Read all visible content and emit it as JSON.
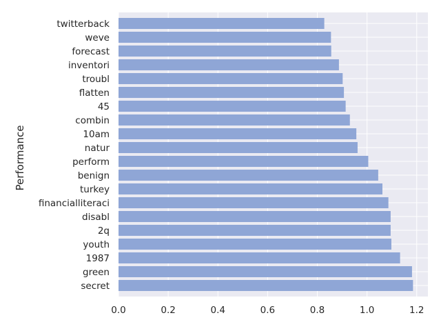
{
  "chart_data": {
    "type": "bar",
    "orientation": "horizontal",
    "categories": [
      "secret",
      "green",
      "1987",
      "youth",
      "2q",
      "disabl",
      "financialliteraci",
      "turkey",
      "benign",
      "perform",
      "natur",
      "10am",
      "combin",
      "45",
      "flatten",
      "troubl",
      "inventori",
      "forecast",
      "weve",
      "twitterback"
    ],
    "values": [
      1.185,
      1.181,
      1.133,
      1.098,
      1.095,
      1.095,
      1.086,
      1.062,
      1.045,
      1.005,
      0.962,
      0.957,
      0.931,
      0.914,
      0.907,
      0.902,
      0.887,
      0.856,
      0.855,
      0.828
    ],
    "title": "",
    "xlabel": "",
    "ylabel": "Performance",
    "xlim": [
      0,
      1.245
    ],
    "xticks": [
      0.0,
      0.2,
      0.4,
      0.6,
      0.8,
      1.0,
      1.2
    ],
    "xtick_labels": [
      "0.0",
      "0.2",
      "0.4",
      "0.6",
      "0.8",
      "1.0",
      "1.2"
    ],
    "grid": true,
    "legend": "none",
    "colors": {
      "bar": "#8fa6d6",
      "background": "#eaeaf2",
      "grid": "#ffffff",
      "text": "#262626"
    }
  }
}
